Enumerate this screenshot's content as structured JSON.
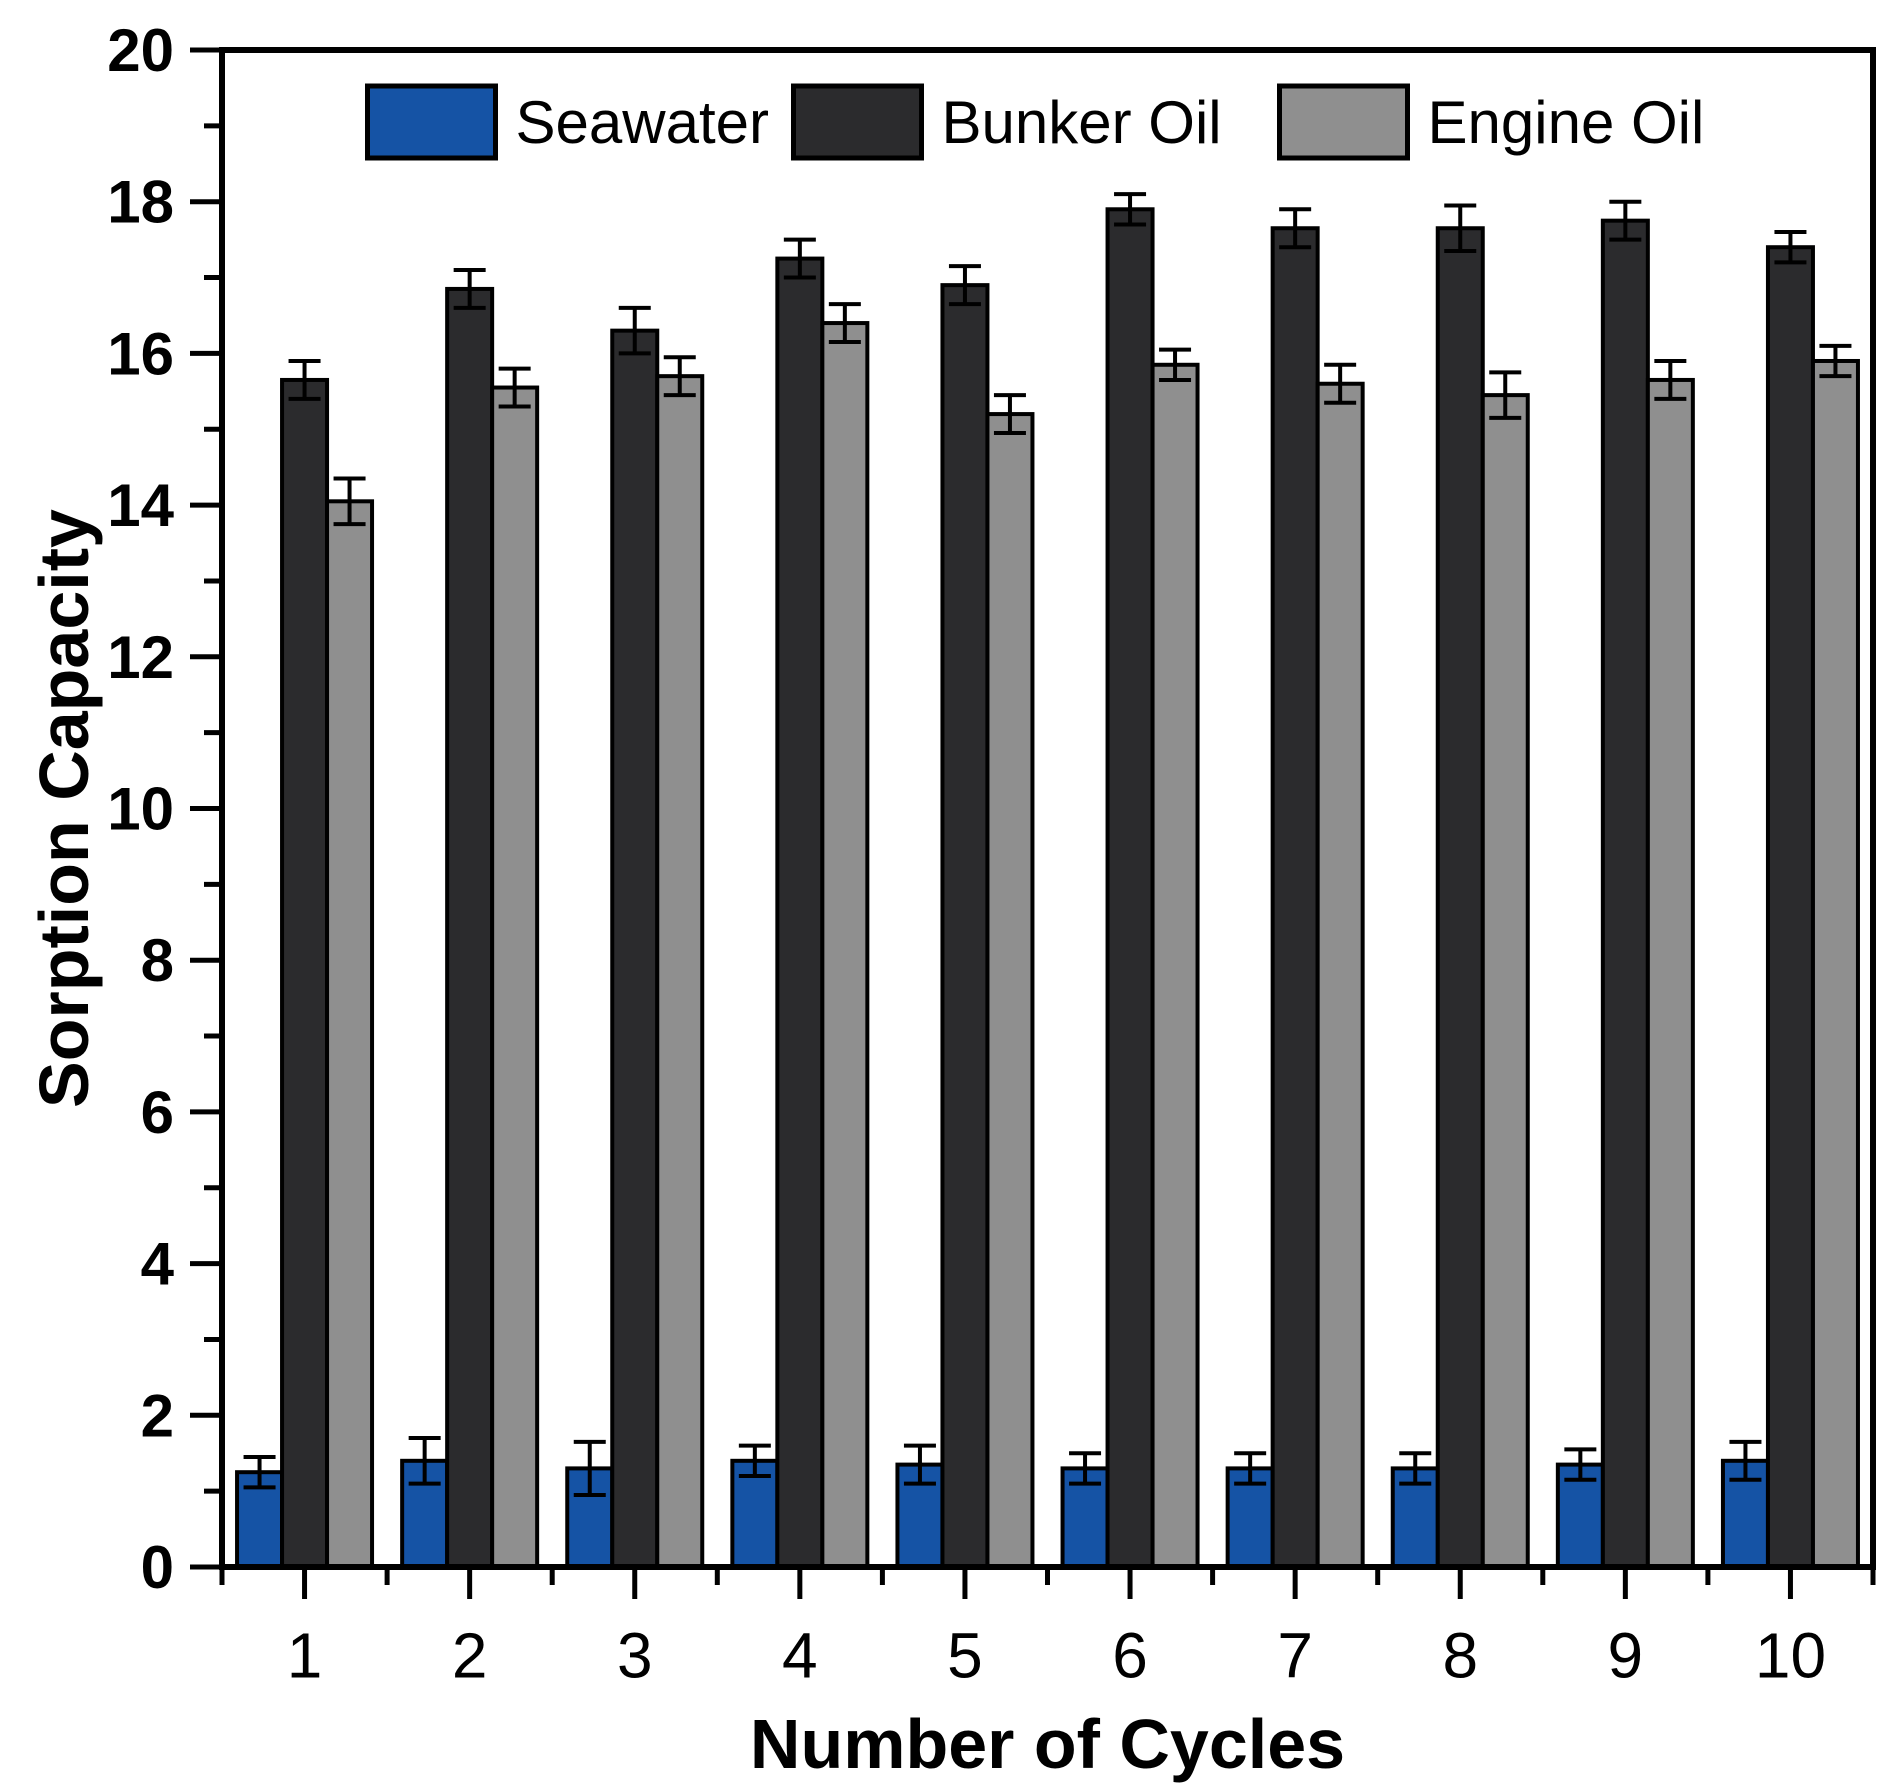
{
  "figure": {
    "background": "#ffffff",
    "text_color": "#000000"
  },
  "chart_data": {
    "type": "bar",
    "title": "",
    "xlabel": "Number of Cycles",
    "ylabel": "Sorption Capacity",
    "categories": [
      "1",
      "2",
      "3",
      "4",
      "5",
      "6",
      "7",
      "8",
      "9",
      "10"
    ],
    "series": [
      {
        "name": "Seawater",
        "color": "#1553A5",
        "values": [
          1.25,
          1.4,
          1.3,
          1.4,
          1.35,
          1.3,
          1.3,
          1.3,
          1.35,
          1.4
        ],
        "errors": [
          0.2,
          0.3,
          0.35,
          0.2,
          0.25,
          0.2,
          0.2,
          0.2,
          0.2,
          0.25
        ]
      },
      {
        "name": "Bunker Oil",
        "color": "#2B2B2D",
        "values": [
          15.65,
          16.85,
          16.3,
          17.25,
          16.9,
          17.9,
          17.65,
          17.65,
          17.75,
          17.4
        ],
        "errors": [
          0.25,
          0.25,
          0.3,
          0.25,
          0.25,
          0.2,
          0.25,
          0.3,
          0.25,
          0.2
        ]
      },
      {
        "name": "Engine Oil",
        "color": "#8F8F8F",
        "values": [
          14.05,
          15.55,
          15.7,
          16.4,
          15.2,
          15.85,
          15.6,
          15.45,
          15.65,
          15.9
        ],
        "errors": [
          0.3,
          0.25,
          0.25,
          0.25,
          0.25,
          0.2,
          0.25,
          0.3,
          0.25,
          0.2
        ]
      }
    ],
    "ylim": [
      0,
      20
    ],
    "y_major_step": 2,
    "y_minor_step": 1,
    "y_tick_labels": [
      "0",
      "2",
      "4",
      "6",
      "8",
      "10",
      "12",
      "14",
      "16",
      "18",
      "20"
    ],
    "grid": false,
    "legend_position": "top-inside",
    "bar_outline_color": "#000000",
    "error_bar_color": "#000000",
    "axis_color": "#000000"
  }
}
